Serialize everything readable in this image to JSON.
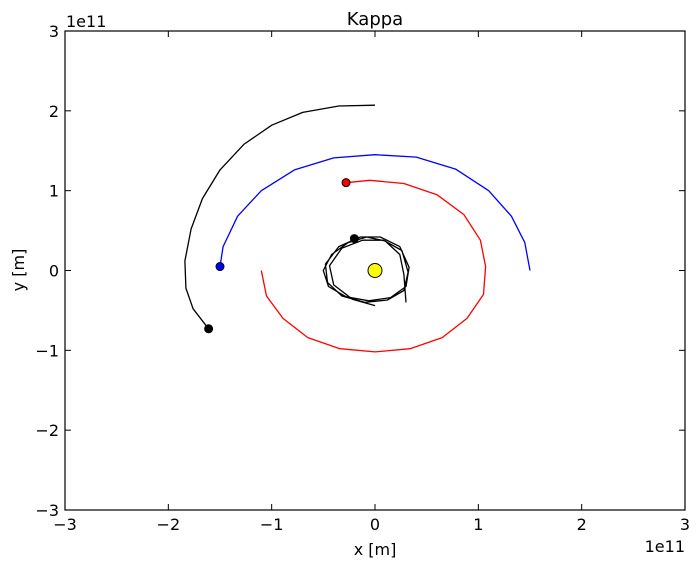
{
  "chart_data": {
    "type": "line",
    "title": "Kappa",
    "xlabel": "x [m]",
    "ylabel": "y [m]",
    "x_offset_label": "1e11",
    "y_offset_label": "1e11",
    "xlim": [
      -3,
      3
    ],
    "ylim": [
      -3,
      3
    ],
    "ticks": [
      -3,
      -2,
      -1,
      0,
      1,
      2,
      3
    ],
    "tick_labels": [
      "−3",
      "−2",
      "−1",
      "0",
      "1",
      "2",
      "3"
    ],
    "grid": false,
    "legend": "none",
    "series": [
      {
        "color": "#000000",
        "points": [
          [
            0.0,
            2.07
          ],
          [
            -0.35,
            2.06
          ],
          [
            -0.7,
            1.98
          ],
          [
            -1.0,
            1.82
          ],
          [
            -1.27,
            1.58
          ],
          [
            -1.5,
            1.26
          ],
          [
            -1.67,
            0.9
          ],
          [
            -1.78,
            0.52
          ],
          [
            -1.84,
            0.12
          ],
          [
            -1.83,
            -0.22
          ],
          [
            -1.76,
            -0.48
          ],
          [
            -1.61,
            -0.73
          ]
        ],
        "marker": [
          -1.61,
          -0.73
        ]
      },
      {
        "color": "#0000ff",
        "points": [
          [
            1.5,
            0.0
          ],
          [
            1.45,
            0.35
          ],
          [
            1.32,
            0.68
          ],
          [
            1.1,
            1.0
          ],
          [
            0.78,
            1.27
          ],
          [
            0.4,
            1.42
          ],
          [
            0.0,
            1.45
          ],
          [
            -0.4,
            1.41
          ],
          [
            -0.78,
            1.26
          ],
          [
            -1.1,
            1.0
          ],
          [
            -1.33,
            0.68
          ],
          [
            -1.47,
            0.3
          ],
          [
            -1.5,
            0.05
          ]
        ],
        "marker": [
          -1.5,
          0.05
        ]
      },
      {
        "color": "#ff0000",
        "points": [
          [
            -1.1,
            0.0
          ],
          [
            -1.05,
            -0.32
          ],
          [
            -0.89,
            -0.6
          ],
          [
            -0.65,
            -0.84
          ],
          [
            -0.34,
            -0.98
          ],
          [
            0.0,
            -1.02
          ],
          [
            0.34,
            -0.98
          ],
          [
            0.65,
            -0.84
          ],
          [
            0.89,
            -0.6
          ],
          [
            1.05,
            -0.3
          ],
          [
            1.07,
            0.05
          ],
          [
            1.02,
            0.38
          ],
          [
            0.86,
            0.7
          ],
          [
            0.6,
            0.95
          ],
          [
            0.28,
            1.09
          ],
          [
            -0.05,
            1.13
          ],
          [
            -0.28,
            1.1
          ]
        ],
        "marker": [
          -0.28,
          1.1
        ]
      },
      {
        "color": "#000000",
        "points": [
          [
            0.3,
            -0.4
          ],
          [
            0.28,
            -0.05
          ],
          [
            0.24,
            0.2
          ],
          [
            0.1,
            0.37
          ],
          [
            -0.08,
            0.42
          ],
          [
            -0.26,
            0.35
          ],
          [
            -0.42,
            0.2
          ],
          [
            -0.5,
            0.0
          ],
          [
            -0.45,
            -0.2
          ],
          [
            -0.28,
            -0.33
          ],
          [
            -0.06,
            -0.38
          ],
          [
            0.15,
            -0.34
          ],
          [
            0.3,
            -0.2
          ],
          [
            0.33,
            0.04
          ],
          [
            0.24,
            0.3
          ],
          [
            0.05,
            0.42
          ],
          [
            -0.14,
            0.42
          ],
          [
            -0.35,
            0.3
          ],
          [
            -0.48,
            0.08
          ],
          [
            -0.46,
            -0.15
          ],
          [
            -0.32,
            -0.32
          ],
          [
            -0.1,
            -0.4
          ],
          [
            0.12,
            -0.37
          ],
          [
            0.28,
            -0.25
          ],
          [
            0.32,
            -0.02
          ],
          [
            0.26,
            0.25
          ],
          [
            0.08,
            0.38
          ],
          [
            -0.12,
            0.38
          ],
          [
            -0.32,
            0.28
          ],
          [
            -0.44,
            0.06
          ],
          [
            -0.4,
            -0.18
          ],
          [
            -0.22,
            -0.36
          ],
          [
            0.0,
            -0.44
          ]
        ],
        "marker": [
          -0.2,
          0.4
        ]
      }
    ],
    "central_body": {
      "x": 0.0,
      "y": 0.0,
      "color": "#ffff00"
    }
  }
}
